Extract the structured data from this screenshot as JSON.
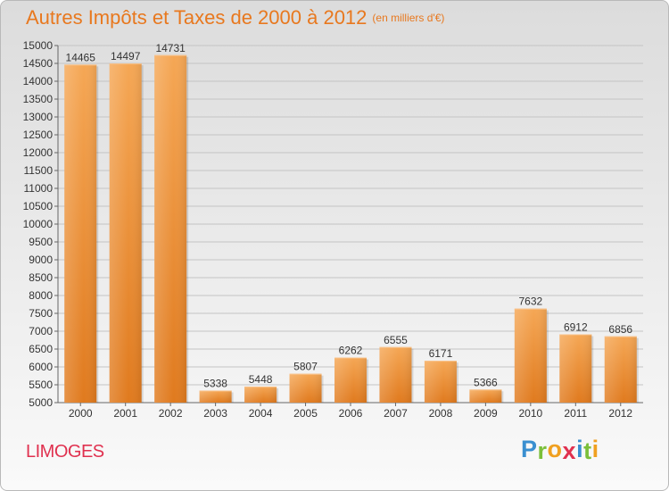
{
  "title": "Autres Impôts et Taxes de 2000 à 2012",
  "unit": "(en milliers d'€)",
  "city": "LIMOGES",
  "logo": {
    "letters": [
      "P",
      "r",
      "o",
      "x",
      "i",
      "t",
      "i"
    ],
    "colors": [
      "#3a8fd0",
      "#7bbf3a",
      "#f0a020",
      "#e0314f",
      "#3a8fd0",
      "#7bbf3a",
      "#f0a020"
    ]
  },
  "colors": {
    "bar_light": "#f5a755",
    "bar_dark": "#e07a1e",
    "title": "#e8781e",
    "city": "#e0314f"
  },
  "chart_data": {
    "type": "bar",
    "categories": [
      "2000",
      "2001",
      "2002",
      "2003",
      "2004",
      "2005",
      "2006",
      "2007",
      "2008",
      "2009",
      "2010",
      "2011",
      "2012"
    ],
    "values": [
      14465,
      14497,
      14731,
      5338,
      5448,
      5807,
      6262,
      6555,
      6171,
      5366,
      7632,
      6912,
      6856
    ],
    "ylim": [
      5000,
      15000
    ],
    "yticks": [
      5000,
      5500,
      6000,
      6500,
      7000,
      7500,
      8000,
      8500,
      9000,
      9500,
      10000,
      10500,
      11000,
      11500,
      12000,
      12500,
      13000,
      13500,
      14000,
      14500,
      15000
    ],
    "grid": true,
    "data_labels": true
  }
}
